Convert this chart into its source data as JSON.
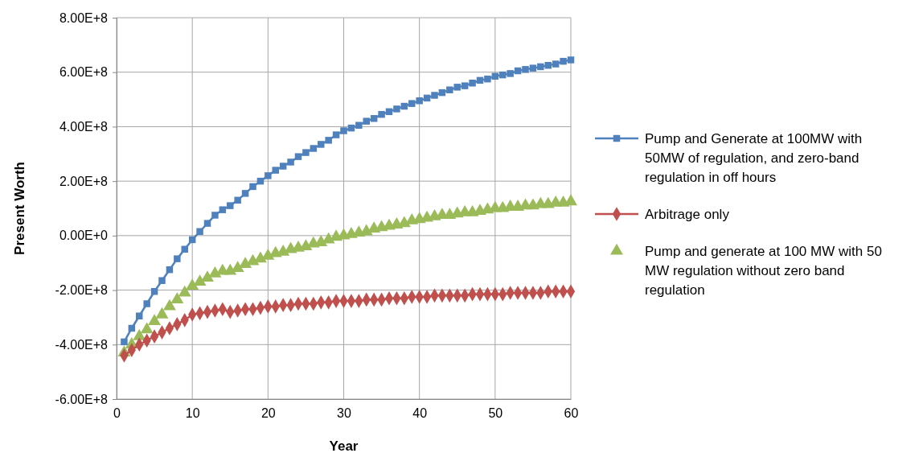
{
  "chart_data": {
    "type": "line",
    "xlabel": "Year",
    "ylabel": "Present Worth",
    "x": [
      1,
      2,
      3,
      4,
      5,
      6,
      7,
      8,
      9,
      10,
      11,
      12,
      13,
      14,
      15,
      16,
      17,
      18,
      19,
      20,
      21,
      22,
      23,
      24,
      25,
      26,
      27,
      28,
      29,
      30,
      31,
      32,
      33,
      34,
      35,
      36,
      37,
      38,
      39,
      40,
      41,
      42,
      43,
      44,
      45,
      46,
      47,
      48,
      49,
      50,
      51,
      52,
      53,
      54,
      55,
      56,
      57,
      58,
      59,
      60
    ],
    "series": [
      {
        "name": "Pump and Generate at 100MW with 50MW of regulation, and zero-band regulation in off hours",
        "color": "#4f81bd",
        "values": [
          -390000000.0,
          -340000000.0,
          -295000000.0,
          -250000000.0,
          -205000000.0,
          -165000000.0,
          -125000000.0,
          -85000000.0,
          -50000000.0,
          -15000000.0,
          15000000.0,
          45000000.0,
          75000000.0,
          95000000.0,
          110000000.0,
          130000000.0,
          155000000.0,
          180000000.0,
          200000000.0,
          220000000.0,
          240000000.0,
          255000000.0,
          270000000.0,
          290000000.0,
          305000000.0,
          320000000.0,
          335000000.0,
          350000000.0,
          370000000.0,
          385000000.0,
          395000000.0,
          405000000.0,
          420000000.0,
          430000000.0,
          445000000.0,
          455000000.0,
          465000000.0,
          475000000.0,
          485000000.0,
          495000000.0,
          505000000.0,
          515000000.0,
          525000000.0,
          535000000.0,
          545000000.0,
          550000000.0,
          560000000.0,
          570000000.0,
          575000000.0,
          585000000.0,
          590000000.0,
          595000000.0,
          605000000.0,
          610000000.0,
          615000000.0,
          620000000.0,
          625000000.0,
          630000000.0,
          640000000.0,
          645000000.0
        ]
      },
      {
        "name": "Arbitrage only",
        "marker": "diamond",
        "color": "#c0504d",
        "values": [
          -440000000.0,
          -420000000.0,
          -400000000.0,
          -385000000.0,
          -370000000.0,
          -355000000.0,
          -340000000.0,
          -325000000.0,
          -310000000.0,
          -290000000.0,
          -285000000.0,
          -280000000.0,
          -275000000.0,
          -270000000.0,
          -280000000.0,
          -275000000.0,
          -270000000.0,
          -270000000.0,
          -265000000.0,
          -260000000.0,
          -260000000.0,
          -255000000.0,
          -255000000.0,
          -250000000.0,
          -250000000.0,
          -250000000.0,
          -245000000.0,
          -245000000.0,
          -240000000.0,
          -240000000.0,
          -240000000.0,
          -240000000.0,
          -235000000.0,
          -235000000.0,
          -235000000.0,
          -230000000.0,
          -230000000.0,
          -230000000.0,
          -225000000.0,
          -225000000.0,
          -225000000.0,
          -220000000.0,
          -220000000.0,
          -220000000.0,
          -220000000.0,
          -220000000.0,
          -215000000.0,
          -215000000.0,
          -215000000.0,
          -215000000.0,
          -215000000.0,
          -210000000.0,
          -210000000.0,
          -210000000.0,
          -210000000.0,
          -210000000.0,
          -205000000.0,
          -205000000.0,
          -205000000.0,
          -205000000.0
        ]
      },
      {
        "name": "Pump and generate at 100 MW with 50 MW regulation without zero band regulation",
        "type": "scatter",
        "marker": "triangle",
        "color": "#9bbb59",
        "values": [
          -430000000.0,
          -400000000.0,
          -370000000.0,
          -345000000.0,
          -315000000.0,
          -290000000.0,
          -260000000.0,
          -235000000.0,
          -210000000.0,
          -185000000.0,
          -170000000.0,
          -155000000.0,
          -140000000.0,
          -130000000.0,
          -130000000.0,
          -120000000.0,
          -105000000.0,
          -95000000.0,
          -85000000.0,
          -75000000.0,
          -65000000.0,
          -60000000.0,
          -50000000.0,
          -45000000.0,
          -40000000.0,
          -30000000.0,
          -25000000.0,
          -15000000.0,
          -5000000.0,
          0.0,
          5000000.0,
          10000000.0,
          15000000.0,
          25000000.0,
          30000000.0,
          35000000.0,
          40000000.0,
          45000000.0,
          55000000.0,
          60000000.0,
          65000000.0,
          70000000.0,
          75000000.0,
          75000000.0,
          80000000.0,
          85000000.0,
          85000000.0,
          90000000.0,
          95000000.0,
          100000000.0,
          100000000.0,
          105000000.0,
          105000000.0,
          110000000.0,
          110000000.0,
          115000000.0,
          115000000.0,
          120000000.0,
          120000000.0,
          125000000.0
        ]
      }
    ],
    "xlim": [
      0,
      60
    ],
    "xticks": [
      0,
      10,
      20,
      30,
      40,
      50,
      60
    ],
    "ylim": [
      -600000000.0,
      800000000.0
    ],
    "yticks": [
      {
        "value": -600000000.0,
        "label": "-6.00E+8"
      },
      {
        "value": -400000000.0,
        "label": "-4.00E+8"
      },
      {
        "value": -200000000.0,
        "label": "-2.00E+8"
      },
      {
        "value": 0,
        "label": "0.00E+0"
      },
      {
        "value": 200000000.0,
        "label": "2.00E+8"
      },
      {
        "value": 400000000.0,
        "label": "4.00E+8"
      },
      {
        "value": 600000000.0,
        "label": "6.00E+8"
      },
      {
        "value": 800000000.0,
        "label": "8.00E+8"
      }
    ],
    "grid": true,
    "legend": "right",
    "marker": "square"
  }
}
